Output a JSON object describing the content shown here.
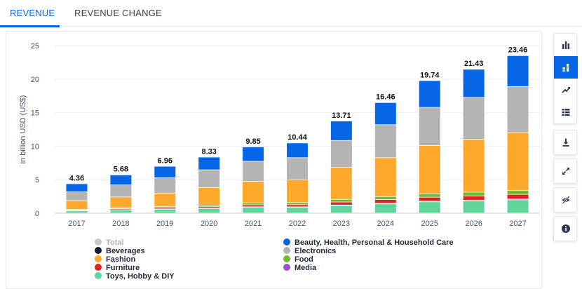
{
  "tabs": [
    {
      "label": "REVENUE",
      "active": true
    },
    {
      "label": "REVENUE CHANGE",
      "active": false
    }
  ],
  "toolbar": {
    "icons": [
      "bar-chart-icon",
      "stacked-bar-icon",
      "trend-line-icon",
      "table-view-icon",
      "download-icon",
      "fullscreen-icon",
      "hide-icon",
      "info-icon"
    ],
    "active": "stacked-bar-icon"
  },
  "chart_data": {
    "type": "bar",
    "stacked": true,
    "title": "",
    "xlabel": "",
    "ylabel": "in billion USD (US$)",
    "ylim": [
      0,
      25
    ],
    "yticks": [
      0,
      5,
      10,
      15,
      20,
      25
    ],
    "categories": [
      "2017",
      "2018",
      "2019",
      "2020",
      "2021",
      "2022",
      "2023",
      "2024",
      "2025",
      "2026",
      "2027"
    ],
    "totals": [
      4.36,
      5.68,
      6.96,
      8.33,
      9.85,
      10.44,
      13.71,
      16.46,
      19.74,
      21.43,
      23.46
    ],
    "total_labels": [
      "4.36",
      "5.68",
      "6.96",
      "8.33",
      "9.85",
      "10.44",
      "13.71",
      "16.46",
      "19.74",
      "21.43",
      "23.46"
    ],
    "series": [
      {
        "name": "Toys, Hobby & DIY",
        "color": "#5fd49b",
        "values": [
          0.3,
          0.45,
          0.55,
          0.65,
          0.85,
          0.85,
          1.1,
          1.35,
          1.65,
          1.8,
          1.95
        ]
      },
      {
        "name": "Media",
        "color": "#9c4fd0",
        "values": [
          0.03,
          0.03,
          0.04,
          0.05,
          0.06,
          0.06,
          0.08,
          0.09,
          0.1,
          0.1,
          0.12
        ]
      },
      {
        "name": "Furniture",
        "color": "#e02424",
        "values": [
          0.1,
          0.14,
          0.18,
          0.22,
          0.3,
          0.32,
          0.45,
          0.55,
          0.6,
          0.65,
          0.7
        ]
      },
      {
        "name": "Food",
        "color": "#6fbb2e",
        "values": [
          0.12,
          0.16,
          0.2,
          0.24,
          0.3,
          0.32,
          0.4,
          0.45,
          0.5,
          0.55,
          0.6
        ]
      },
      {
        "name": "Fashion",
        "color": "#ffa92c",
        "values": [
          1.29,
          1.6,
          2.0,
          2.6,
          3.2,
          3.4,
          4.8,
          5.8,
          7.2,
          7.9,
          8.6
        ]
      },
      {
        "name": "Electronics",
        "color": "#b4b4b4",
        "values": [
          1.32,
          1.8,
          2.29,
          2.67,
          2.99,
          3.29,
          3.98,
          4.92,
          5.69,
          6.23,
          6.89
        ]
      },
      {
        "name": "Beauty, Health, Personal & Household Care",
        "color": "#0666e5",
        "values": [
          1.2,
          1.5,
          1.7,
          1.9,
          2.15,
          2.2,
          2.9,
          3.3,
          4.0,
          4.2,
          4.6
        ]
      },
      {
        "name": "Beverages",
        "color": "#0b1a2e",
        "values": [
          0,
          0,
          0,
          0,
          0,
          0,
          0,
          0,
          0,
          0,
          0
        ]
      }
    ],
    "legend": [
      {
        "name": "Total",
        "color": "#c8c8c8",
        "muted": true
      },
      {
        "name": "Beauty, Health, Personal & Household Care",
        "color": "#0666e5",
        "muted": false
      },
      {
        "name": "Beverages",
        "color": "#0b1a2e",
        "muted": false
      },
      {
        "name": "Electronics",
        "color": "#b4b4b4",
        "muted": false
      },
      {
        "name": "Fashion",
        "color": "#ffa92c",
        "muted": false
      },
      {
        "name": "Food",
        "color": "#6fbb2e",
        "muted": false
      },
      {
        "name": "Furniture",
        "color": "#e02424",
        "muted": false
      },
      {
        "name": "Media",
        "color": "#9c4fd0",
        "muted": false
      },
      {
        "name": "Toys, Hobby & DIY",
        "color": "#5fd49b",
        "muted": false
      }
    ],
    "legend_position": "bottom",
    "grid": true
  }
}
